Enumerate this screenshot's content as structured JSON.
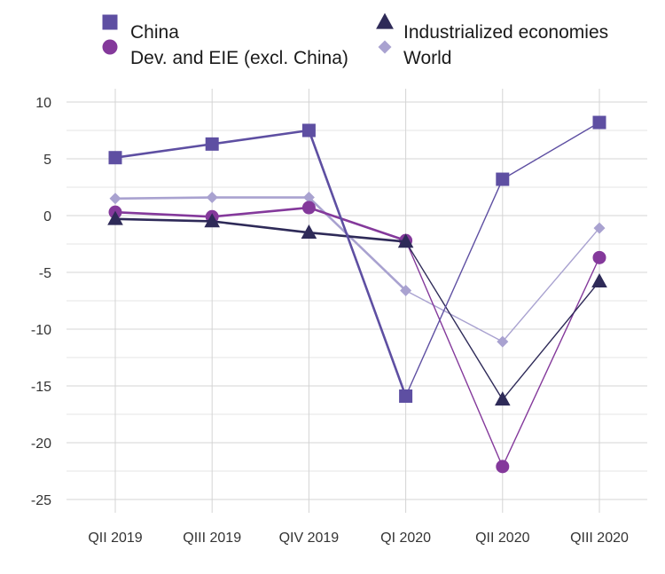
{
  "chart_data": {
    "type": "line",
    "categories": [
      "QII 2019",
      "QIII 2019",
      "QIV 2019",
      "QI 2020",
      "QII 2020",
      "QIII 2020"
    ],
    "ylim": [
      -25,
      10
    ],
    "yticks": [
      10,
      5,
      0,
      -5,
      -10,
      -15,
      -20,
      -25
    ],
    "ytick_labels": [
      "10",
      "5",
      "0",
      "-5",
      "-10",
      "-15",
      "-20",
      "-25"
    ],
    "grid": true,
    "legend_position": "top",
    "series": [
      {
        "name": "China",
        "marker": "square",
        "color": "#5e4fa2",
        "values": [
          5.1,
          6.3,
          7.5,
          -15.9,
          3.2,
          8.2
        ]
      },
      {
        "name": "Industrialized economies",
        "marker": "triangle",
        "color": "#2e2a58",
        "values": [
          -0.3,
          -0.5,
          -1.5,
          -2.3,
          -16.2,
          -5.8
        ]
      },
      {
        "name": "Dev. and EIE (excl. China)",
        "marker": "circle",
        "color": "#84399b",
        "values": [
          0.3,
          -0.1,
          0.7,
          -2.2,
          -22.1,
          -3.7
        ]
      },
      {
        "name": "World",
        "marker": "diamond",
        "color": "#a9a2d0",
        "values": [
          1.5,
          1.6,
          1.6,
          -6.6,
          -11.1,
          -1.1
        ]
      }
    ]
  }
}
